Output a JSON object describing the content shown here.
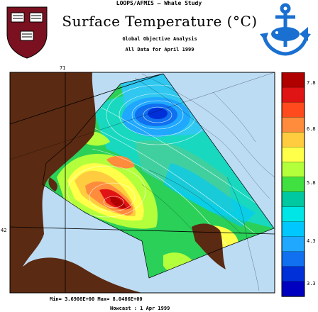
{
  "header": {
    "study": "LOOPS/AFMIS – Whale Study",
    "title": "Surface Temperature   (°C)",
    "analysis": "Global Objective Analysis",
    "period": "All Data for April 1999"
  },
  "axes": {
    "lon_label": "71",
    "lat_label": "42"
  },
  "footer": {
    "stats": "Min= 3.6908E+00  Max= 8.0486E+00",
    "nowcast": "Nowcast :  1 Apr 1999"
  },
  "colorbar": {
    "ticks": [
      "7.8",
      "6.8",
      "5.8",
      "4.3",
      "3.3"
    ],
    "colors": [
      "#b00000",
      "#e01414",
      "#ff4a1e",
      "#ff8c3c",
      "#ffcc40",
      "#ffff4a",
      "#b4ff3c",
      "#40e040",
      "#00c8a0",
      "#00e6e6",
      "#00c8ff",
      "#20a8ff",
      "#1070f0",
      "#0030d8",
      "#0000c0"
    ]
  },
  "legend_colors": {
    "land": "#5a2a12",
    "ocean": "#bcdcf4",
    "logo_left": "#7a1020",
    "logo_right": "#1a70d0"
  }
}
